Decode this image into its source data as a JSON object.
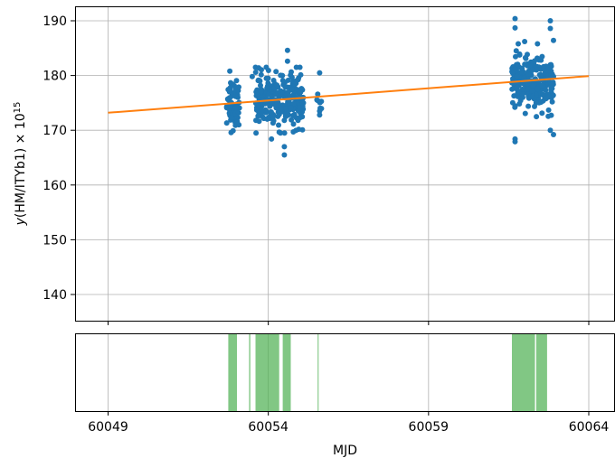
{
  "chart_data": [
    {
      "panel": "main",
      "type": "scatter",
      "xlabel": "",
      "ylabel_prefix": "y",
      "ylabel_body": "(HM/ITYb1) × 10",
      "ylabel_exponent": "15",
      "xlim": [
        60048.0,
        64064.9
      ],
      "ylim": [
        135.0,
        193.0
      ],
      "yticks": [
        140,
        150,
        160,
        170,
        180,
        190
      ],
      "xticks": [
        60049,
        60054,
        60059,
        60064
      ],
      "grid": true,
      "series": [
        {
          "kind": "points",
          "color": "#1f77b4",
          "clusters": [
            {
              "x_range": [
                60052.7,
                60053.1
              ],
              "y_mean": 175.0,
              "y_spread": 3.0,
              "n": 70
            },
            {
              "x_range": [
                60053.6,
                60055.1
              ],
              "y_mean": 175.5,
              "y_spread": 3.2,
              "n": 260
            },
            {
              "x_range": [
                60055.5,
                60055.7
              ],
              "y_mean": 176.0,
              "y_spread": 2.5,
              "n": 8
            },
            {
              "x_range": [
                60061.6,
                60062.9
              ],
              "y_mean": 178.5,
              "y_spread": 3.0,
              "n": 260
            }
          ],
          "outliers": [
            {
              "x": 60052.8,
              "y": 180.8
            },
            {
              "x": 60052.9,
              "y": 169.9
            },
            {
              "x": 60053.5,
              "y": 179.8
            },
            {
              "x": 60053.7,
              "y": 181.4
            },
            {
              "x": 60054.1,
              "y": 168.4
            },
            {
              "x": 60054.5,
              "y": 165.5
            },
            {
              "x": 60054.5,
              "y": 167.0
            },
            {
              "x": 60054.6,
              "y": 184.6
            },
            {
              "x": 60054.6,
              "y": 182.6
            },
            {
              "x": 60055.6,
              "y": 180.5
            },
            {
              "x": 60055.6,
              "y": 173.5
            },
            {
              "x": 60055.6,
              "y": 172.8
            },
            {
              "x": 60061.7,
              "y": 190.4
            },
            {
              "x": 60061.7,
              "y": 188.7
            },
            {
              "x": 60061.8,
              "y": 185.8
            },
            {
              "x": 60061.7,
              "y": 168.4
            },
            {
              "x": 60061.7,
              "y": 167.9
            },
            {
              "x": 60062.8,
              "y": 190.0
            },
            {
              "x": 60062.8,
              "y": 188.6
            },
            {
              "x": 60062.9,
              "y": 186.4
            },
            {
              "x": 60062.8,
              "y": 170.0
            },
            {
              "x": 60062.9,
              "y": 169.2
            },
            {
              "x": 60062.0,
              "y": 186.2
            },
            {
              "x": 60062.4,
              "y": 185.8
            }
          ]
        },
        {
          "kind": "line",
          "color": "#ff7f0e",
          "x": [
            60049.0,
            60064.0
          ],
          "y": [
            173.2,
            179.9
          ]
        }
      ]
    },
    {
      "panel": "coverage",
      "type": "bar",
      "xlabel": "MJD",
      "xticks": [
        60049,
        60054,
        60059,
        60064
      ],
      "grid": true,
      "color": "#4caf50",
      "spans": [
        [
          60052.75,
          60053.02
        ],
        [
          60053.4,
          60053.44
        ],
        [
          60053.6,
          60054.34
        ],
        [
          60054.45,
          60054.7
        ],
        [
          60055.54,
          60055.57
        ],
        [
          60061.6,
          60062.32
        ],
        [
          60062.36,
          60062.7
        ]
      ]
    }
  ]
}
